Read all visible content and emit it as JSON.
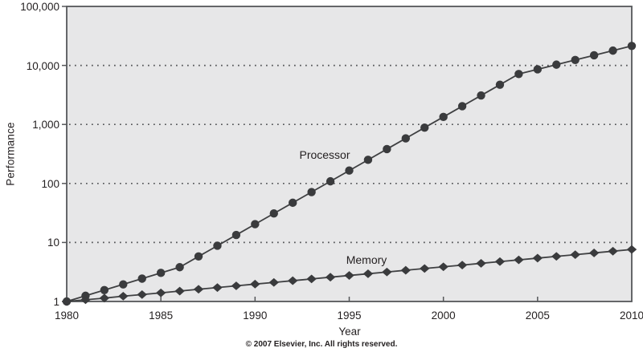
{
  "footer": {
    "copyright": "© 2007 Elsevier, Inc. All rights reserved."
  },
  "colors": {
    "plot_background": "#e7e7e8",
    "frame": "#55575a",
    "gridline": "#505254",
    "series_line": "#3f4042",
    "marker_fill": "#3a3b3d",
    "text": "#231f20"
  },
  "chart_data": {
    "type": "line",
    "title": "",
    "xlabel": "Year",
    "ylabel": "Performance",
    "y_scale": "log",
    "xlim": [
      1980,
      2010
    ],
    "ylim": [
      1,
      100000
    ],
    "grid": "horizontal-dotted",
    "legend_position": "inline-labels",
    "x_ticks": [
      1980,
      1985,
      1990,
      1995,
      2000,
      2005,
      2010
    ],
    "y_ticks": [
      {
        "value": 100000,
        "label": "100,000"
      },
      {
        "value": 10000,
        "label": "10,000"
      },
      {
        "value": 1000,
        "label": "1,000"
      },
      {
        "value": 100,
        "label": "100"
      },
      {
        "value": 10,
        "label": "10"
      },
      {
        "value": 1,
        "label": "1"
      }
    ],
    "x": [
      1980,
      1981,
      1982,
      1983,
      1984,
      1985,
      1986,
      1987,
      1988,
      1989,
      1990,
      1991,
      1992,
      1993,
      1994,
      1995,
      1996,
      1997,
      1998,
      1999,
      2000,
      2001,
      2002,
      2003,
      2004,
      2005,
      2006,
      2007,
      2008,
      2009,
      2010
    ],
    "series": [
      {
        "name": "Processor",
        "label": "Processor",
        "marker": "circle",
        "values": [
          1,
          1.25,
          1.56,
          1.95,
          2.44,
          3.05,
          3.81,
          5.8,
          8.8,
          13.4,
          20.4,
          31.0,
          47.1,
          71.5,
          108.7,
          165.3,
          251.2,
          381.9,
          580.5,
          882.3,
          1341,
          2039,
          3099,
          4711,
          7161,
          8593,
          10312,
          12374,
          14849,
          17819,
          21383
        ]
      },
      {
        "name": "Memory",
        "label": "Memory",
        "marker": "diamond",
        "values": [
          1,
          1.07,
          1.14,
          1.23,
          1.31,
          1.4,
          1.5,
          1.61,
          1.72,
          1.84,
          1.97,
          2.1,
          2.25,
          2.41,
          2.58,
          2.76,
          2.95,
          3.16,
          3.38,
          3.62,
          3.87,
          4.14,
          4.43,
          4.74,
          5.07,
          5.43,
          5.81,
          6.21,
          6.65,
          7.11,
          7.61
        ]
      }
    ]
  }
}
